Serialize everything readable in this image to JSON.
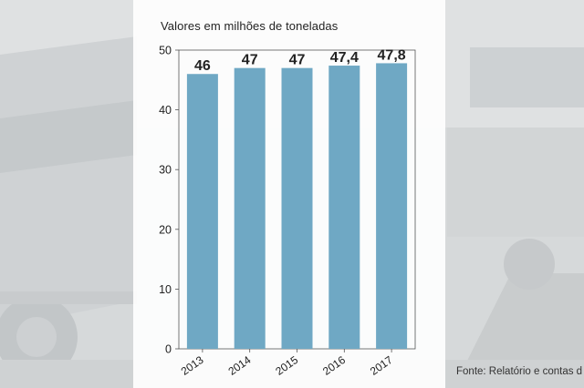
{
  "colors": {
    "bar": "#6fa8c4",
    "axis": "#555555"
  },
  "source": "Fonte: Relatório e contas d",
  "chart_data": {
    "type": "bar",
    "title": "Valores em milhões de toneladas",
    "categories": [
      "2013",
      "2014",
      "2015",
      "2016",
      "2017"
    ],
    "values": [
      46,
      47,
      47,
      47.4,
      47.8
    ],
    "data_labels": [
      "46",
      "47",
      "47",
      "47,4",
      "47,8"
    ],
    "yticks": [
      0,
      10,
      20,
      30,
      40,
      50
    ],
    "ylim": [
      0,
      50
    ],
    "xlabel": "",
    "ylabel": "",
    "grid": false,
    "legend": "none"
  }
}
